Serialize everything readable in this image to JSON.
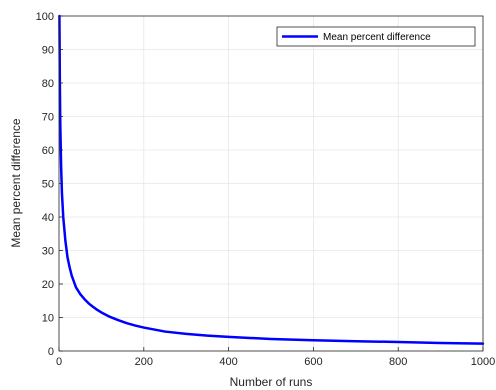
{
  "chart_data": {
    "type": "line",
    "title": "",
    "xlabel": "Number of runs",
    "ylabel": "Mean percent difference",
    "xlim": [
      0,
      1000
    ],
    "ylim": [
      0,
      100
    ],
    "x_ticks": [
      "0",
      "200",
      "400",
      "600",
      "800",
      "1000"
    ],
    "y_ticks": [
      "0",
      "10",
      "20",
      "30",
      "40",
      "50",
      "60",
      "70",
      "80",
      "90",
      "100"
    ],
    "grid": true,
    "legend_position": "top-right",
    "colors": {
      "series": "#0000ff",
      "grid": "#e6e6e6",
      "axis": "#262626"
    },
    "series": [
      {
        "name": "Mean percent difference",
        "x": [
          1,
          2,
          3,
          5,
          7,
          10,
          15,
          20,
          25,
          30,
          40,
          50,
          60,
          70,
          80,
          90,
          100,
          120,
          140,
          160,
          180,
          200,
          250,
          300,
          350,
          400,
          450,
          500,
          600,
          700,
          800,
          900,
          1000
        ],
        "y": [
          100,
          80,
          68,
          55,
          47,
          40,
          33,
          28,
          25,
          22.5,
          19,
          17,
          15.5,
          14.2,
          13.2,
          12.3,
          11.5,
          10.2,
          9.2,
          8.3,
          7.6,
          7.0,
          5.8,
          5.1,
          4.6,
          4.2,
          3.9,
          3.6,
          3.2,
          2.9,
          2.7,
          2.4,
          2.2
        ]
      }
    ]
  }
}
